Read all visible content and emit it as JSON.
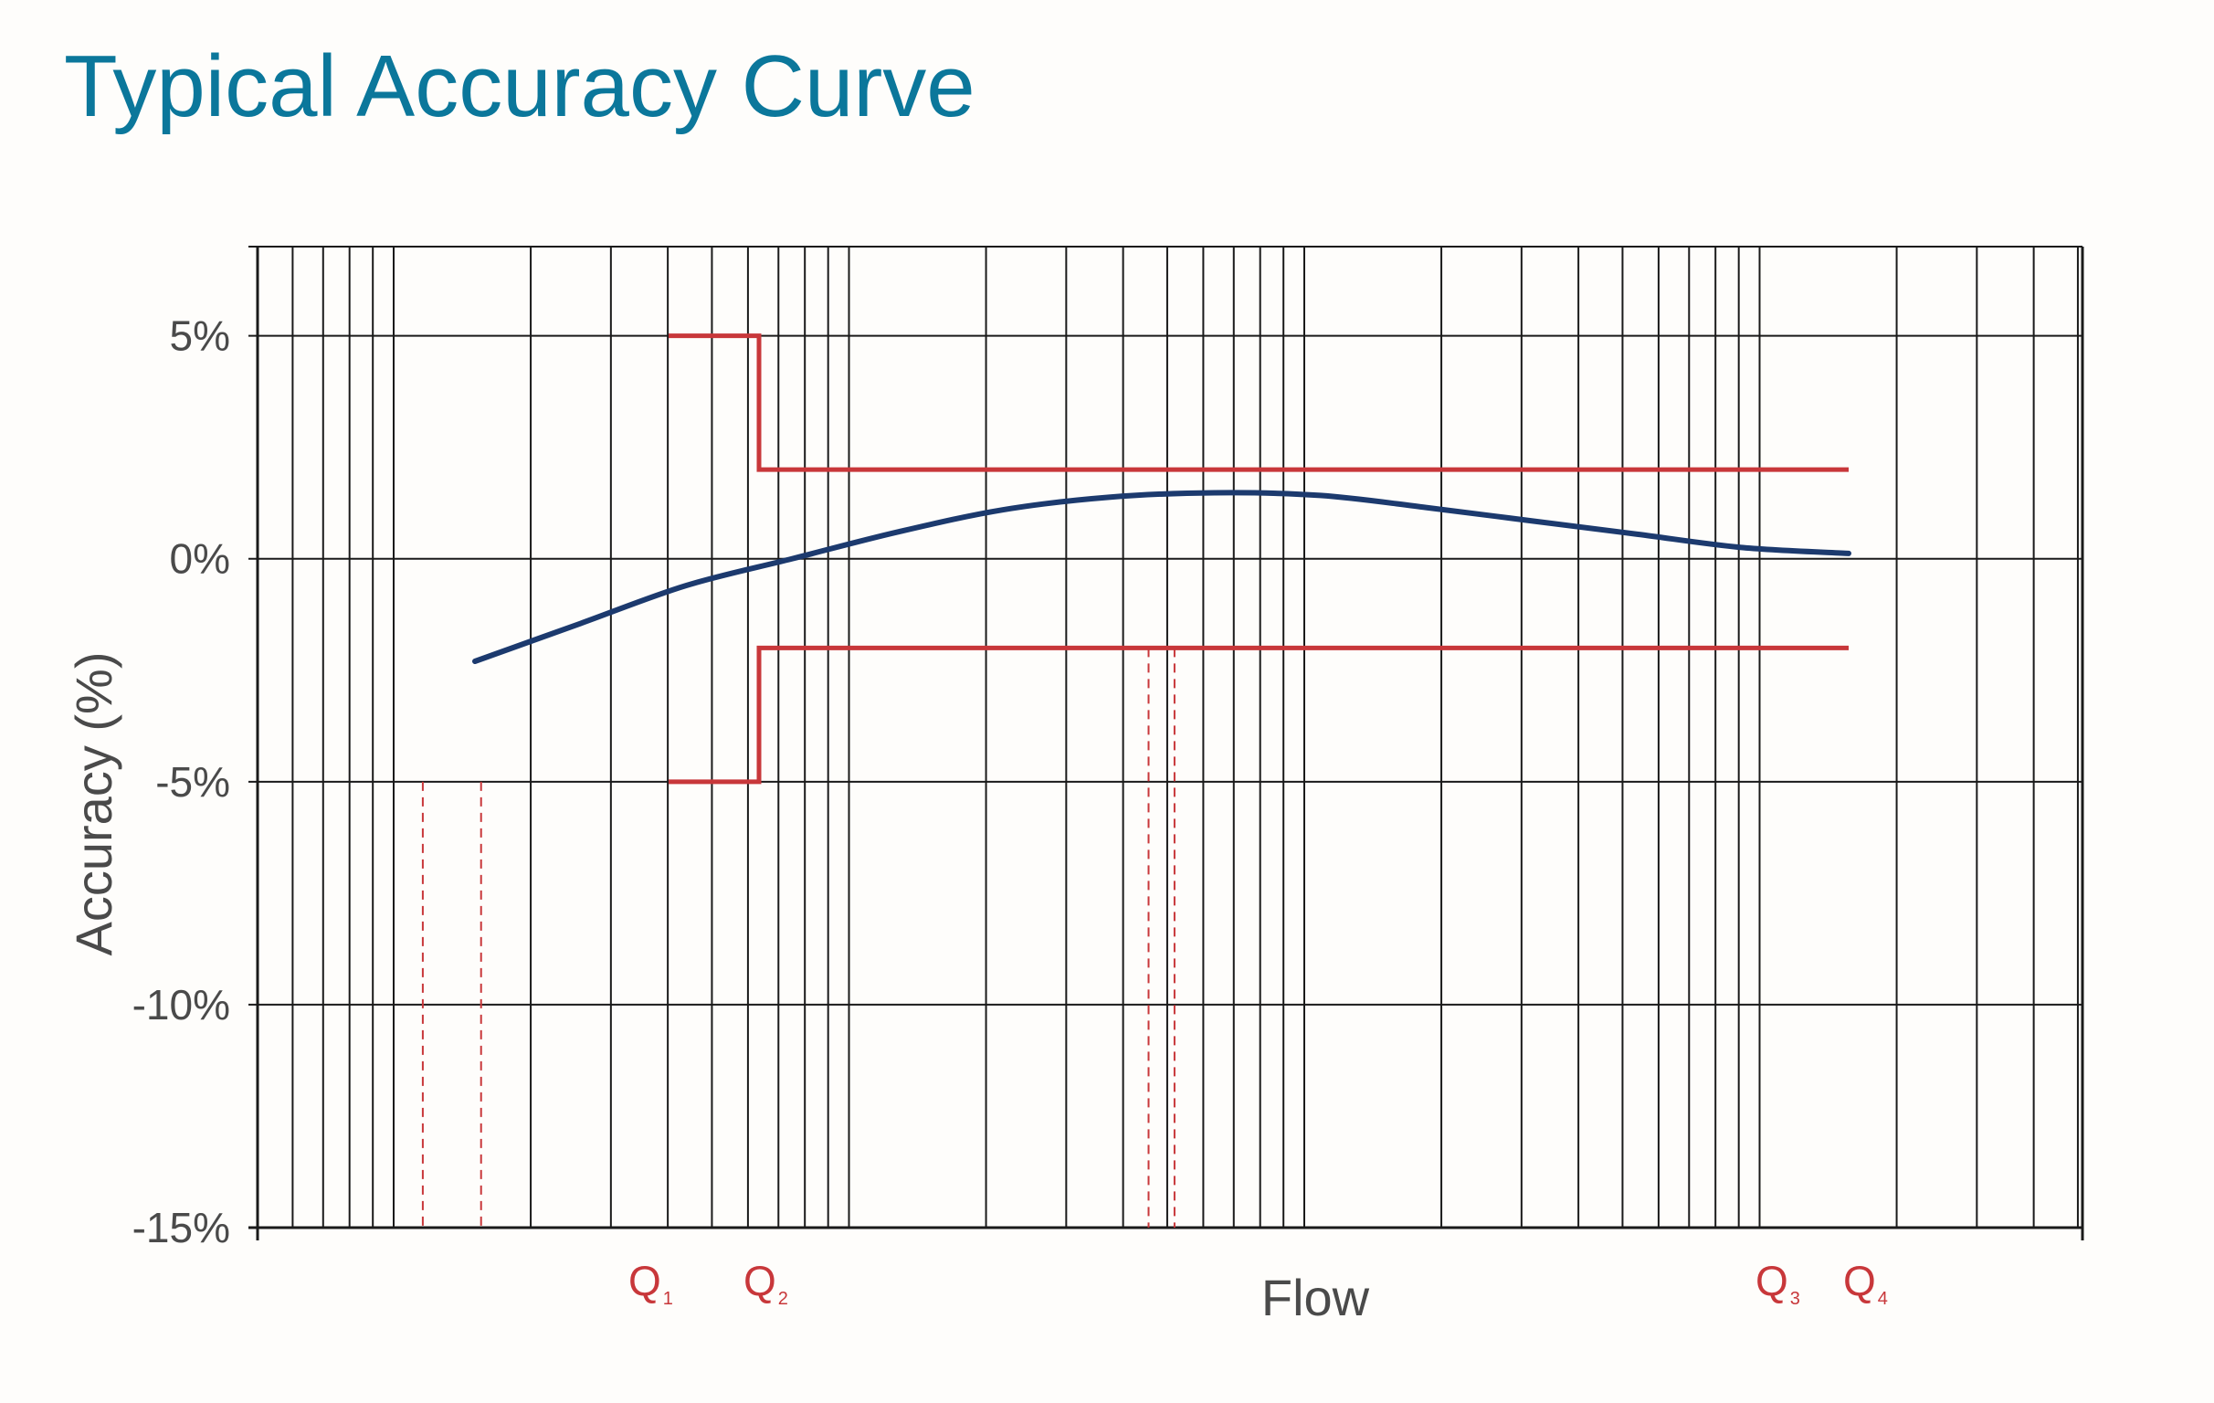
{
  "title": "Typical Accuracy Curve",
  "colors": {
    "title": "#0b779b",
    "curve": "#1c3a6e",
    "limits": "#c8373a",
    "grid": "#1a1a1a",
    "text": "#4a4a4a"
  },
  "chart_data": {
    "type": "line",
    "title": "Typical Accuracy Curve",
    "xlabel": "Flow",
    "ylabel": "Accuracy (%)",
    "x_scale": "log",
    "x_tick_labels_numeric": false,
    "ylim": [
      -15,
      7
    ],
    "y_ticks": [
      {
        "value": 5,
        "label": "5%"
      },
      {
        "value": 0,
        "label": "0%"
      },
      {
        "value": -5,
        "label": "-5%"
      },
      {
        "value": -10,
        "label": "-10%"
      },
      {
        "value": -15,
        "label": "-15%"
      }
    ],
    "grid": true,
    "flow_markers": [
      {
        "name": "Q",
        "sub": "1"
      },
      {
        "name": "Q",
        "sub": "2"
      },
      {
        "name": "Q",
        "sub": "3"
      },
      {
        "name": "Q",
        "sub": "4"
      }
    ],
    "series": [
      {
        "name": "",
        "role": "meter-accuracy-curve",
        "y": [
          -2.3,
          -1.45,
          -0.6,
          0.0,
          0.6,
          1.1,
          1.38,
          1.48,
          1.42,
          1.15,
          0.85,
          0.55,
          0.25,
          0.12
        ]
      },
      {
        "name": "",
        "role": "upper-error-limit",
        "segments": [
          {
            "from": "Q1",
            "to": "Q2",
            "value": 5
          },
          {
            "from": "Q2",
            "to": "Q4",
            "value": 2
          }
        ]
      },
      {
        "name": "",
        "role": "lower-error-limit",
        "segments": [
          {
            "from": "Q1",
            "to": "Q2",
            "value": -5
          },
          {
            "from": "Q2",
            "to": "Q4",
            "value": -2
          }
        ]
      }
    ]
  }
}
